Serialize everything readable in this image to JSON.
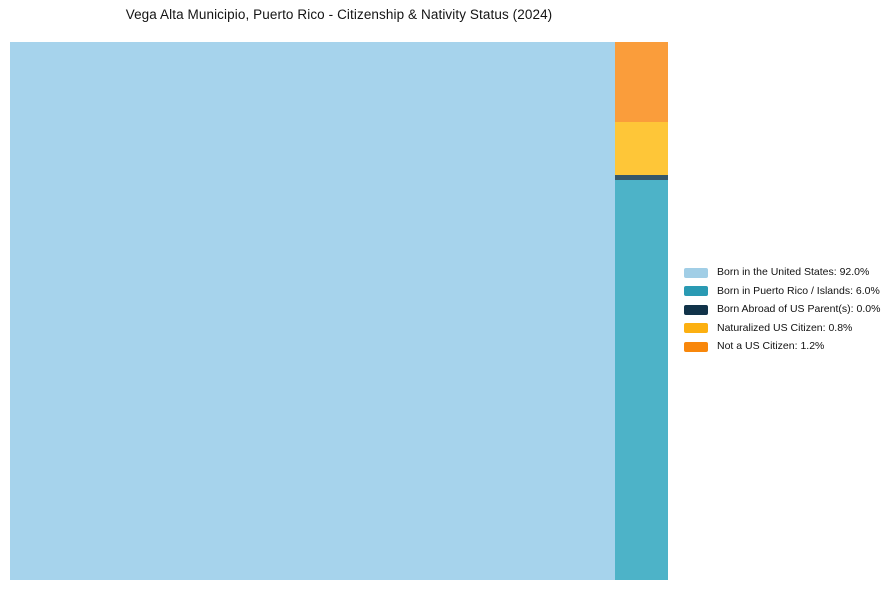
{
  "page": {
    "title": "Vega Alta Municipio, Puerto Rico - Citizenship & Nativity Status (2024)"
  },
  "chart_data": {
    "type": "treemap",
    "title": "Vega Alta Municipio, Puerto Rico - Citizenship & Nativity Status (2024)",
    "categories": [
      "Born in the United States",
      "Born in Puerto Rico / Islands",
      "Born Abroad of US Parent(s)",
      "Naturalized US Citizen",
      "Not a US Citizen"
    ],
    "values": [
      92.0,
      6.0,
      0.0,
      0.8,
      1.2
    ],
    "unit": "%",
    "tile_colors": [
      "#a6d3ec",
      "#4db3c8",
      "#36576a",
      "#fec638",
      "#fa9d3b"
    ],
    "legend_colors": [
      "#a1cee6",
      "#2a9ab3",
      "#113349",
      "#fcb011",
      "#f8870b"
    ],
    "legend_position": "right-center",
    "background_color": "#ffffff"
  },
  "legend": {
    "items": [
      {
        "label": "Born in the United States: 92.0%",
        "color": "#a1cee6"
      },
      {
        "label": "Born in Puerto Rico / Islands: 6.0%",
        "color": "#2a9ab3"
      },
      {
        "label": "Born Abroad of US Parent(s): 0.0%",
        "color": "#113349"
      },
      {
        "label": "Naturalized US Citizen: 0.8%",
        "color": "#fcb011"
      },
      {
        "label": "Not a US Citizen: 1.2%",
        "color": "#f8870b"
      }
    ]
  }
}
